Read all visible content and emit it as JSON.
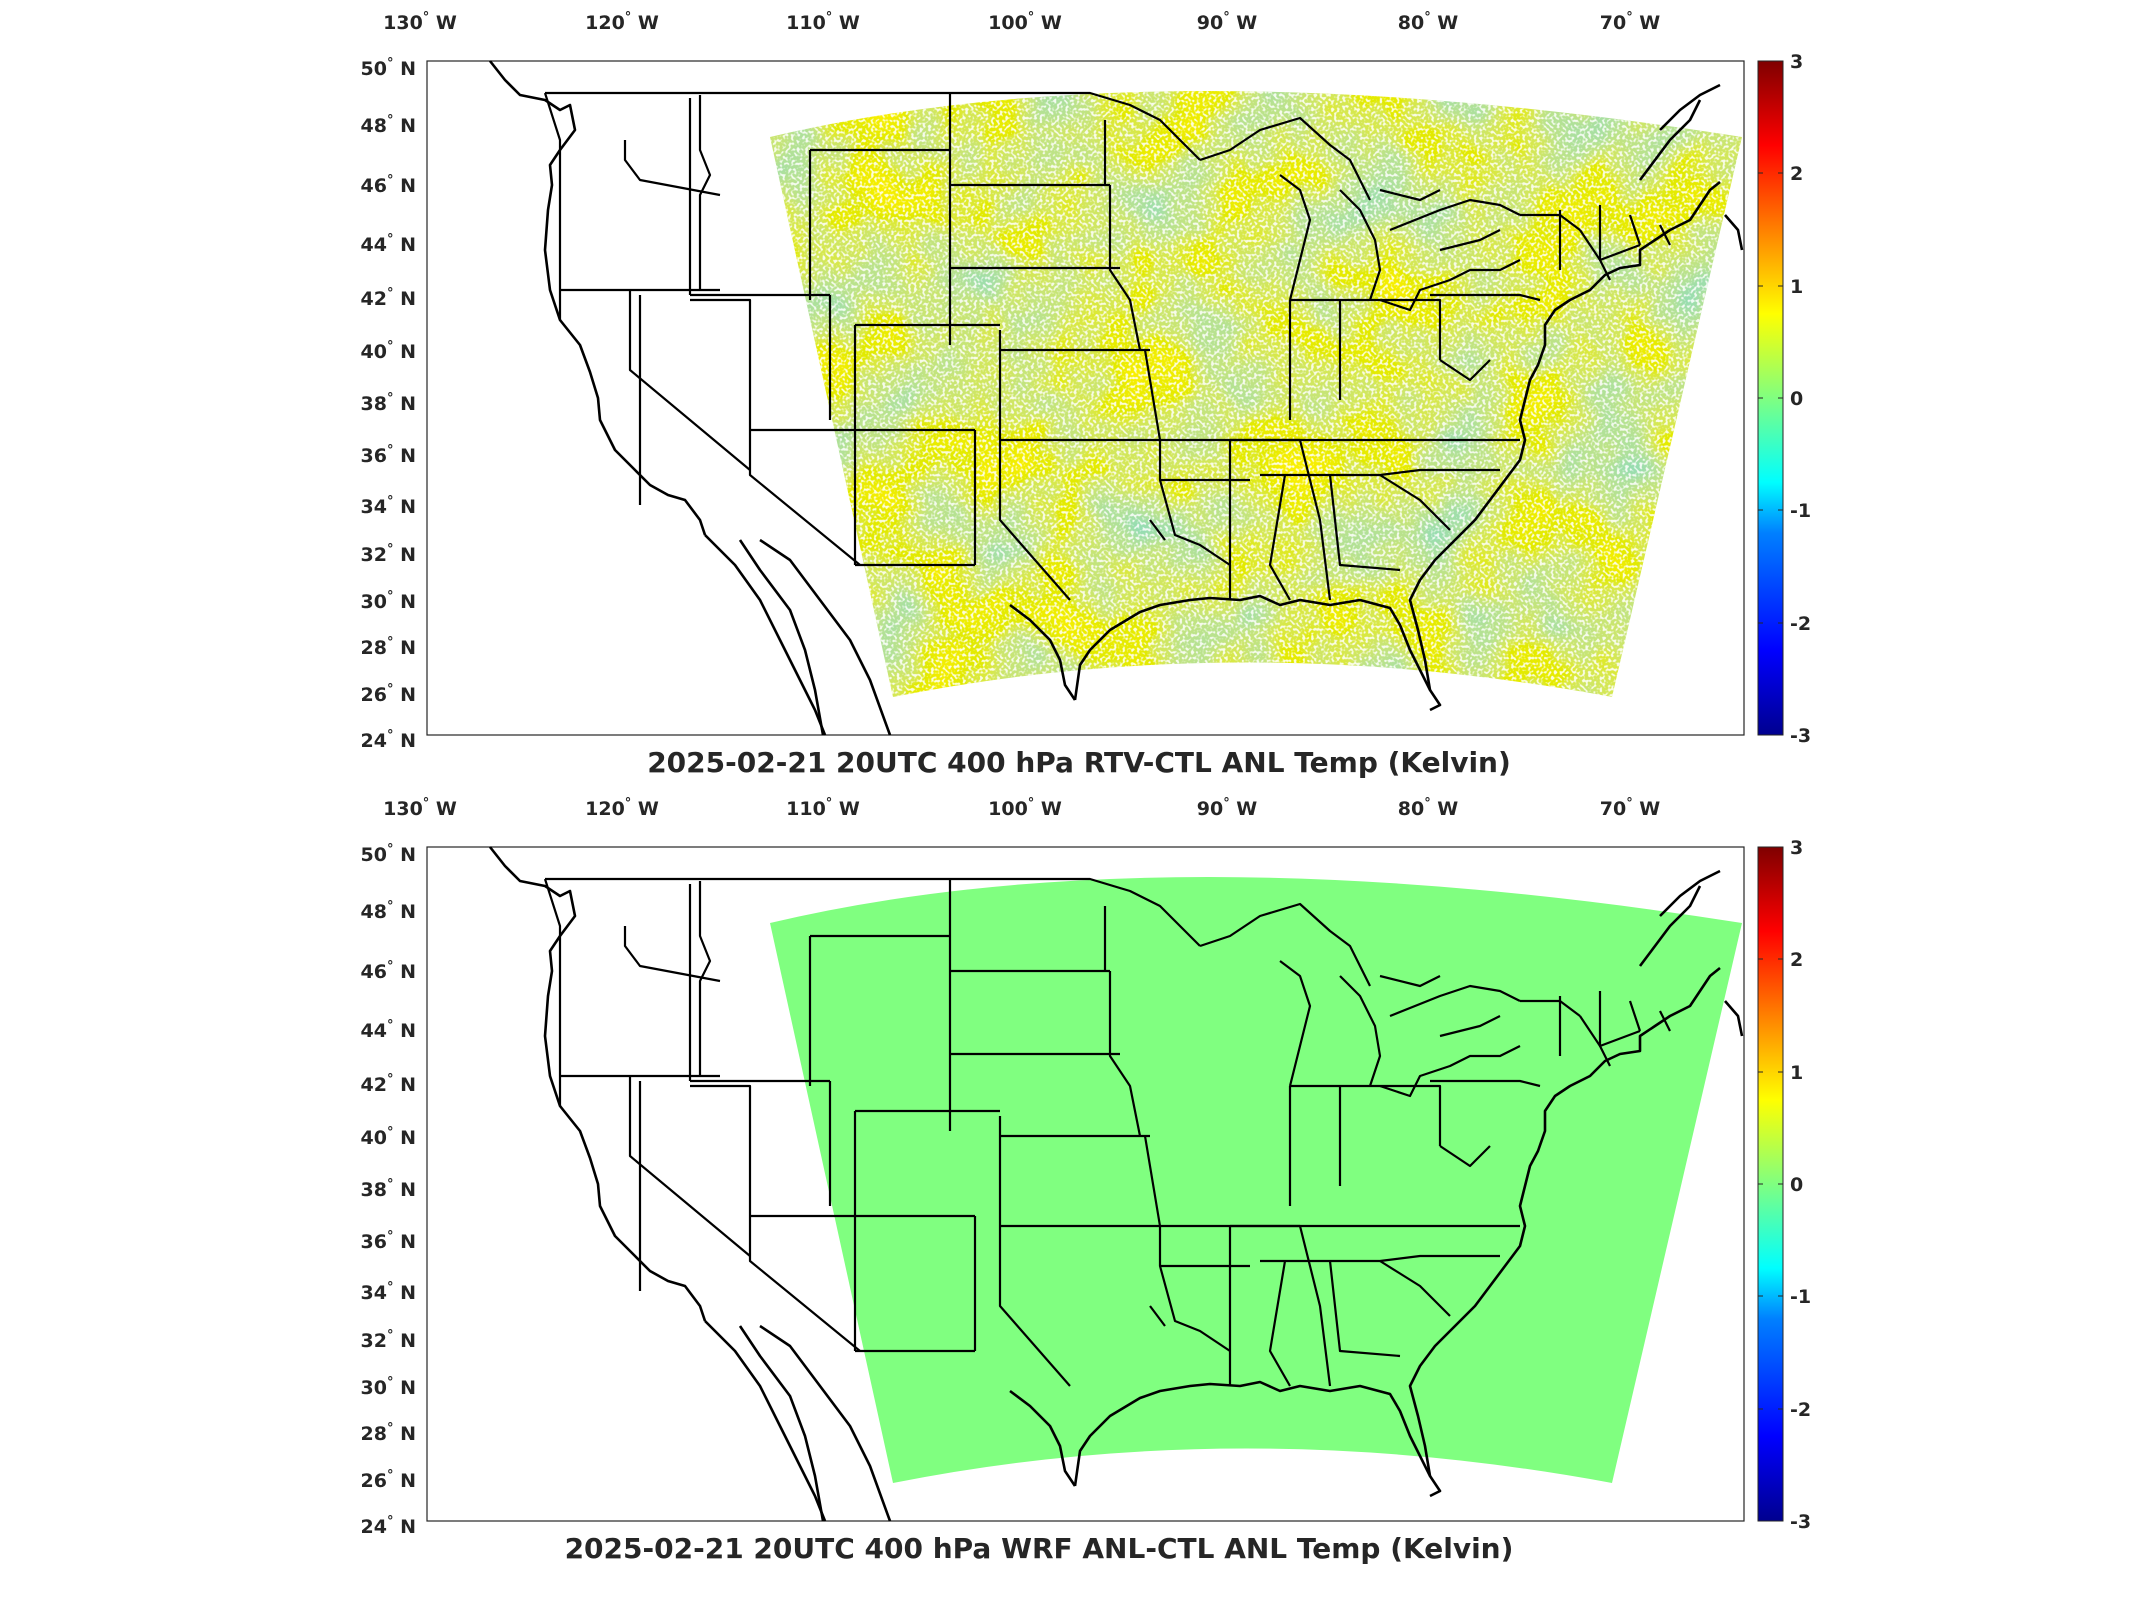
{
  "colorbar": {
    "ticks": [
      "3",
      "2",
      "1",
      "0",
      "-1",
      "-2",
      "-3"
    ],
    "colors": [
      "#7f0000",
      "#ff0000",
      "#ff8000",
      "#ffff00",
      "#80ff80",
      "#00ffff",
      "#0080ff",
      "#0000ff",
      "#00008f"
    ]
  },
  "map_axes": {
    "lon_labels": [
      "130",
      "120",
      "110",
      "100",
      "90",
      "80",
      "70"
    ],
    "lon_suffix": "W",
    "lat_labels": [
      "50",
      "48",
      "46",
      "44",
      "42",
      "40",
      "38",
      "36",
      "34",
      "32",
      "30",
      "28",
      "26",
      "24"
    ],
    "lat_suffix": "N",
    "degree_symbol": "°"
  },
  "panels": [
    {
      "title": "2025-02-21 20UTC 400 hPa RTV-CTL ANL Temp (Kelvin)",
      "field_color": "#9ee86a",
      "field_pattern": "noisy"
    },
    {
      "title": "2025-02-21 20UTC 400 hPa WRF ANL-CTL ANL Temp (Kelvin)",
      "field_color": "#80ff80",
      "field_pattern": "uniform"
    }
  ]
}
